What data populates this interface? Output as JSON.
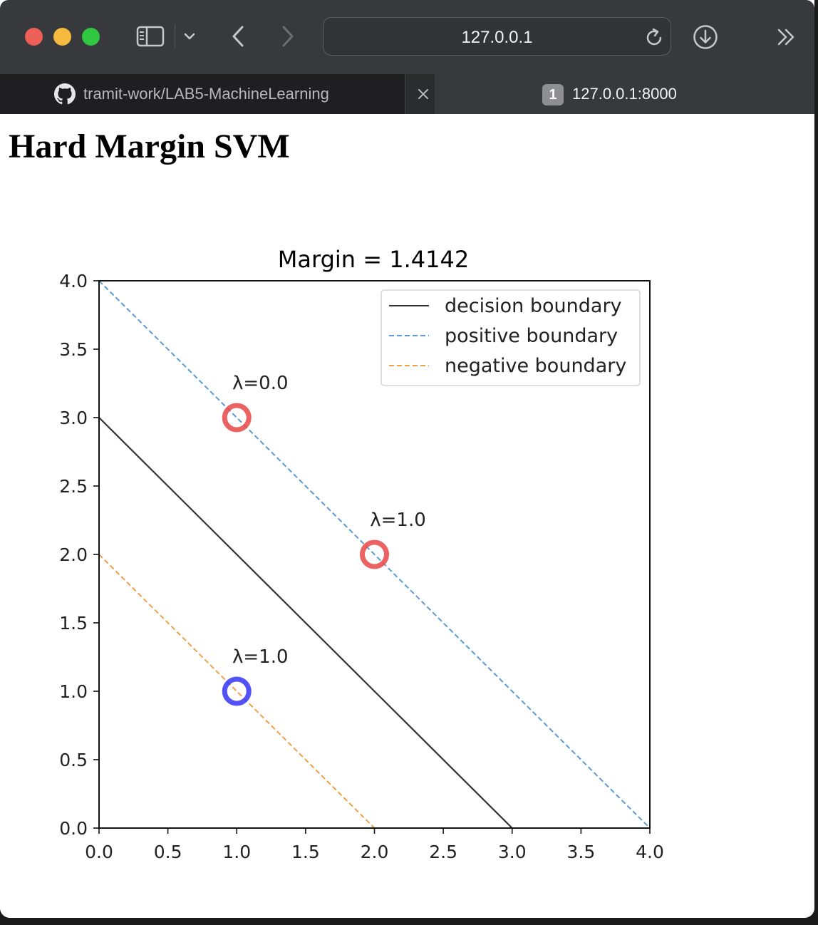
{
  "browser": {
    "address": "127.0.0.1",
    "tabs": [
      {
        "title": "tramit-work/LAB5-MachineLearning",
        "icon": "github-icon",
        "active": false
      },
      {
        "title": "127.0.0.1:8000",
        "badge": "1",
        "active": true
      }
    ],
    "traffic_colors": {
      "close": "#ee5f57",
      "minimize": "#f6bb3e",
      "maximize": "#2fc840"
    }
  },
  "page": {
    "heading": "Hard Margin SVM"
  },
  "chart_data": {
    "type": "line",
    "title": "Margin = 1.4142",
    "xlabel": "",
    "ylabel": "",
    "xlim": [
      0.0,
      4.0
    ],
    "ylim": [
      0.0,
      4.0
    ],
    "xticks": [
      "0.0",
      "0.5",
      "1.0",
      "1.5",
      "2.0",
      "2.5",
      "3.0",
      "3.5",
      "4.0"
    ],
    "yticks": [
      "0.0",
      "0.5",
      "1.0",
      "1.5",
      "2.0",
      "2.5",
      "3.0",
      "3.5",
      "4.0"
    ],
    "grid": false,
    "legend_position": "top-right",
    "series": [
      {
        "name": "decision boundary",
        "style": "solid",
        "color": "#333333",
        "x": [
          0.0,
          3.0
        ],
        "y": [
          3.0,
          0.0
        ]
      },
      {
        "name": "positive boundary",
        "style": "dashed",
        "color": "#5b9bd5",
        "x": [
          0.0,
          4.0
        ],
        "y": [
          4.0,
          0.0
        ]
      },
      {
        "name": "negative boundary",
        "style": "dashed",
        "color": "#f0a04b",
        "x": [
          0.0,
          2.0
        ],
        "y": [
          2.0,
          0.0
        ]
      }
    ],
    "points": [
      {
        "x": 1.0,
        "y": 3.0,
        "color": "#e84c4c",
        "label": "λ=0.0"
      },
      {
        "x": 2.0,
        "y": 2.0,
        "color": "#e84c4c",
        "label": "λ=1.0"
      },
      {
        "x": 1.0,
        "y": 1.0,
        "color": "#3a3af5",
        "label": "λ=1.0"
      }
    ]
  }
}
